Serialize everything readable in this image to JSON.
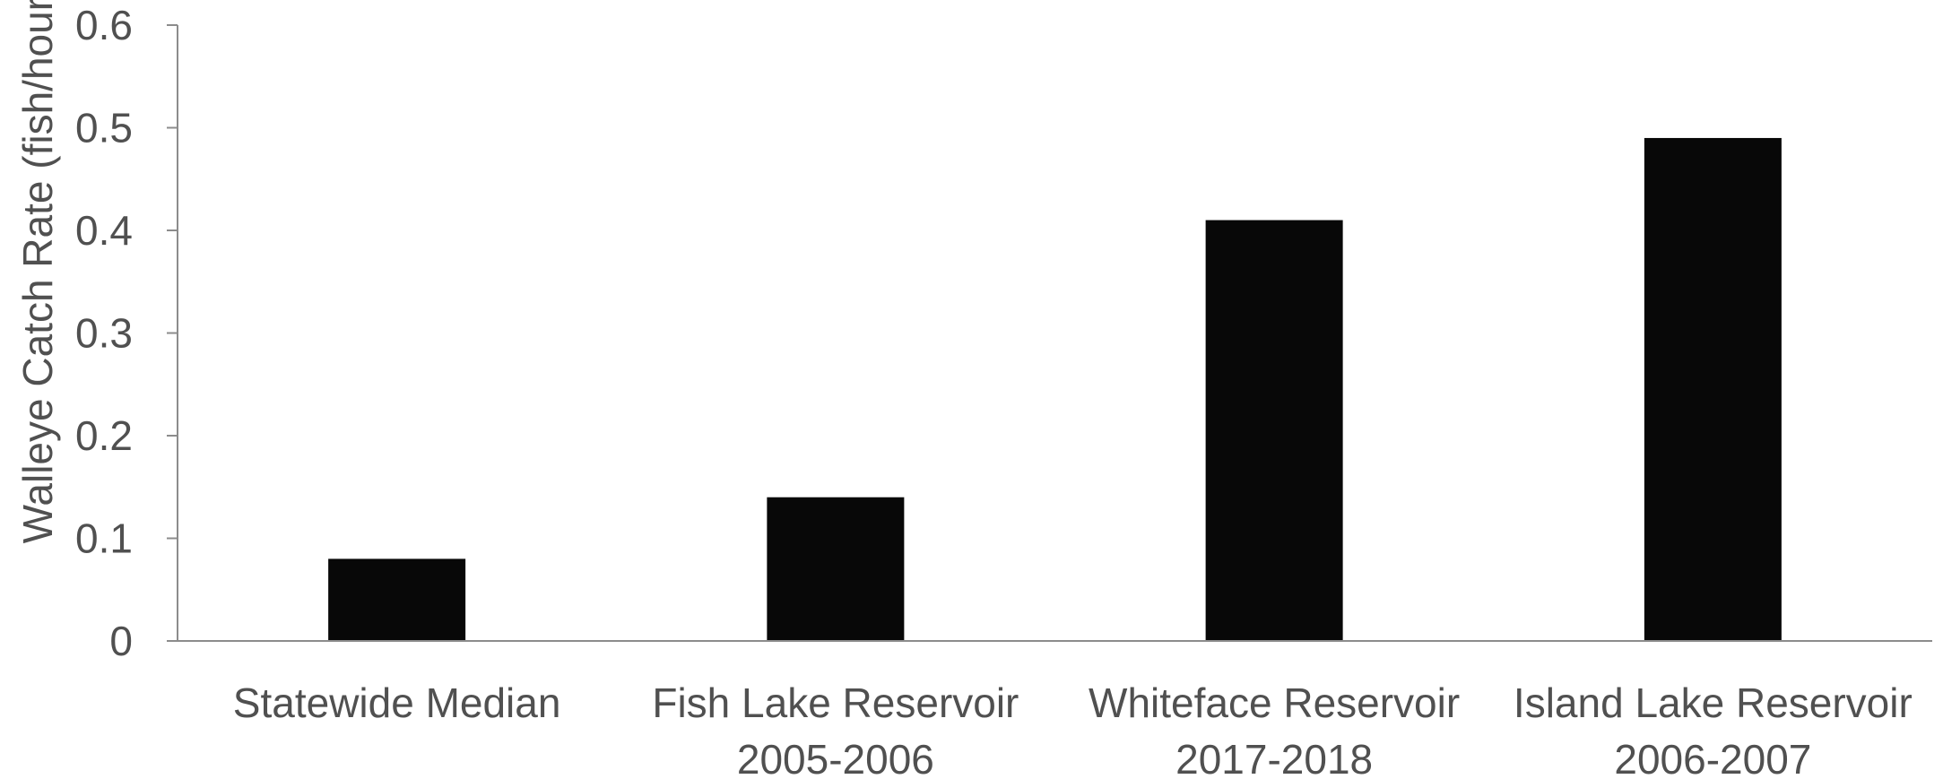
{
  "chart_data": {
    "type": "bar",
    "categories": [
      [
        "Statewide Median"
      ],
      [
        "Fish Lake Reservoir",
        "2005-2006"
      ],
      [
        "Whiteface Reservoir",
        "2017-2018"
      ],
      [
        "Island Lake Reservoir",
        "2006-2007"
      ]
    ],
    "values": [
      0.08,
      0.14,
      0.41,
      0.49
    ],
    "title": "",
    "xlabel": "",
    "ylabel": "Walleye Catch Rate (fish/hour)",
    "ylim": [
      0,
      0.6
    ],
    "yticks": [
      "0",
      "0.1",
      "0.2",
      "0.3",
      "0.4",
      "0.5",
      "0.6"
    ],
    "grid": false,
    "legend": "none",
    "bar_color": "#080808",
    "axis_color": "#8c8c8c",
    "text_color": "#505050"
  }
}
